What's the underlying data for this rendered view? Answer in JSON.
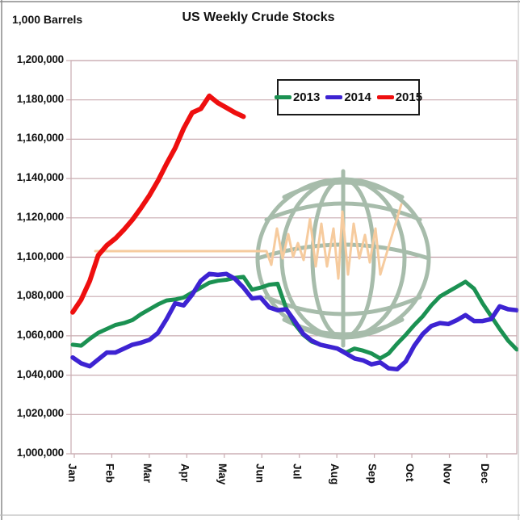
{
  "title": "US Weekly Crude Stocks",
  "units_label": "1,000 Barrels",
  "colors": {
    "background": "#ffffff",
    "grid": "#c9acb1",
    "grid_mid": "#bf9ca4",
    "axis": "#c9acb1",
    "text": "#111111",
    "frame": "#8a8a8a",
    "frame_light": "#bdbdbd",
    "watermark_globe": "#a7bcab",
    "watermark_squiggle": "#f6cb9e",
    "series_2013": "#1b9152",
    "series_2014": "#3d23d2",
    "series_2015": "#ee0f0f"
  },
  "legend": {
    "items": [
      {
        "label": "2013",
        "color": "#1b9152"
      },
      {
        "label": "2014",
        "color": "#3d23d2"
      },
      {
        "label": "2015",
        "color": "#ee0f0f"
      }
    ]
  },
  "chart_data": {
    "type": "line",
    "title": "US Weekly Crude Stocks",
    "ylabel": "1,000 Barrels",
    "xlabel": "",
    "grid": true,
    "legend_position": "top-center-inside",
    "y_min": 1000000,
    "y_max": 1200000,
    "y_step": 20000,
    "x_unit": "week-of-year (0-52)",
    "x_months": [
      "Jan",
      "Feb",
      "Mar",
      "Apr",
      "May",
      "Jun",
      "Jul",
      "Aug",
      "Sep",
      "Oct",
      "Nov",
      "Dec"
    ],
    "series": [
      {
        "name": "2013",
        "color": "#1b9152",
        "width": 5,
        "points": [
          [
            0,
            1055500
          ],
          [
            1,
            1055000
          ],
          [
            2,
            1058500
          ],
          [
            3,
            1061500
          ],
          [
            4,
            1063500
          ],
          [
            5,
            1065500
          ],
          [
            6,
            1066500
          ],
          [
            7,
            1068000
          ],
          [
            8,
            1071000
          ],
          [
            9,
            1073500
          ],
          [
            10,
            1076000
          ],
          [
            11,
            1078000
          ],
          [
            12,
            1078500
          ],
          [
            13,
            1079500
          ],
          [
            14,
            1082000
          ],
          [
            15,
            1084500
          ],
          [
            16,
            1087000
          ],
          [
            17,
            1088000
          ],
          [
            18,
            1088500
          ],
          [
            19,
            1089500
          ],
          [
            20,
            1090000
          ],
          [
            21,
            1083500
          ],
          [
            22,
            1084500
          ],
          [
            23,
            1086000
          ],
          [
            24,
            1086500
          ],
          [
            25,
            1074000
          ],
          [
            26,
            1066000
          ],
          [
            27,
            1060500
          ],
          [
            28,
            1057000
          ],
          [
            29,
            1055500
          ],
          [
            30,
            1054500
          ],
          [
            31,
            1053500
          ],
          [
            32,
            1051500
          ],
          [
            33,
            1053500
          ],
          [
            34,
            1052500
          ],
          [
            35,
            1051000
          ],
          [
            36,
            1048500
          ],
          [
            37,
            1051000
          ],
          [
            38,
            1056000
          ],
          [
            39,
            1060500
          ],
          [
            40,
            1065500
          ],
          [
            41,
            1070000
          ],
          [
            42,
            1075500
          ],
          [
            43,
            1080000
          ],
          [
            44,
            1082500
          ],
          [
            45,
            1085000
          ],
          [
            46,
            1087500
          ],
          [
            47,
            1084000
          ],
          [
            48,
            1076500
          ],
          [
            49,
            1070000
          ],
          [
            50,
            1063500
          ],
          [
            51,
            1057500
          ],
          [
            52,
            1053000
          ]
        ]
      },
      {
        "name": "2014",
        "color": "#3d23d2",
        "width": 5.5,
        "points": [
          [
            0,
            1049000
          ],
          [
            1,
            1046000
          ],
          [
            2,
            1044500
          ],
          [
            3,
            1048000
          ],
          [
            4,
            1051500
          ],
          [
            5,
            1051500
          ],
          [
            6,
            1053500
          ],
          [
            7,
            1055500
          ],
          [
            8,
            1056500
          ],
          [
            9,
            1058000
          ],
          [
            10,
            1061500
          ],
          [
            11,
            1068500
          ],
          [
            12,
            1076500
          ],
          [
            13,
            1075500
          ],
          [
            14,
            1081000
          ],
          [
            15,
            1088000
          ],
          [
            16,
            1091500
          ],
          [
            17,
            1091000
          ],
          [
            18,
            1091500
          ],
          [
            19,
            1089000
          ],
          [
            20,
            1084500
          ],
          [
            21,
            1079000
          ],
          [
            22,
            1079500
          ],
          [
            23,
            1074500
          ],
          [
            24,
            1073000
          ],
          [
            25,
            1073500
          ],
          [
            26,
            1067500
          ],
          [
            27,
            1061000
          ],
          [
            28,
            1057500
          ],
          [
            29,
            1055500
          ],
          [
            30,
            1054500
          ],
          [
            31,
            1053500
          ],
          [
            32,
            1051000
          ],
          [
            33,
            1048500
          ],
          [
            34,
            1047500
          ],
          [
            35,
            1045500
          ],
          [
            36,
            1046500
          ],
          [
            37,
            1043500
          ],
          [
            38,
            1043000
          ],
          [
            39,
            1047000
          ],
          [
            40,
            1055000
          ],
          [
            41,
            1061000
          ],
          [
            42,
            1065000
          ],
          [
            43,
            1066500
          ],
          [
            44,
            1066000
          ],
          [
            45,
            1068000
          ],
          [
            46,
            1070500
          ],
          [
            47,
            1067500
          ],
          [
            48,
            1067500
          ],
          [
            49,
            1068500
          ],
          [
            50,
            1075000
          ],
          [
            51,
            1073500
          ],
          [
            52,
            1073000
          ]
        ]
      },
      {
        "name": "2015",
        "color": "#ee0f0f",
        "width": 6,
        "points": [
          [
            0,
            1072000
          ],
          [
            1,
            1078500
          ],
          [
            2,
            1088000
          ],
          [
            3,
            1101000
          ],
          [
            4,
            1106000
          ],
          [
            5,
            1109500
          ],
          [
            6,
            1114000
          ],
          [
            7,
            1119000
          ],
          [
            8,
            1125000
          ],
          [
            9,
            1131500
          ],
          [
            10,
            1139000
          ],
          [
            11,
            1147500
          ],
          [
            12,
            1155500
          ],
          [
            13,
            1165500
          ],
          [
            14,
            1173500
          ],
          [
            15,
            1175500
          ],
          [
            16,
            1182000
          ],
          [
            17,
            1178500
          ],
          [
            18,
            1176000
          ],
          [
            19,
            1173500
          ],
          [
            20,
            1171500
          ]
        ]
      }
    ]
  }
}
